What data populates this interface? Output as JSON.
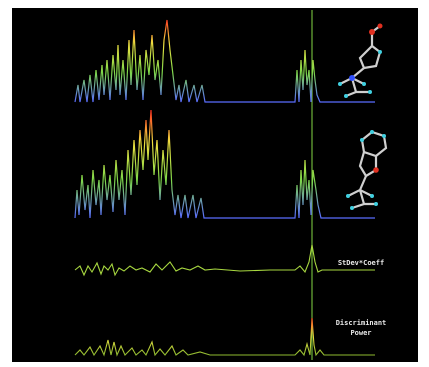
{
  "labels": {
    "stdev_coeff": "StDev*Coeff",
    "discriminant_power": "Discriminant Power"
  }
}
